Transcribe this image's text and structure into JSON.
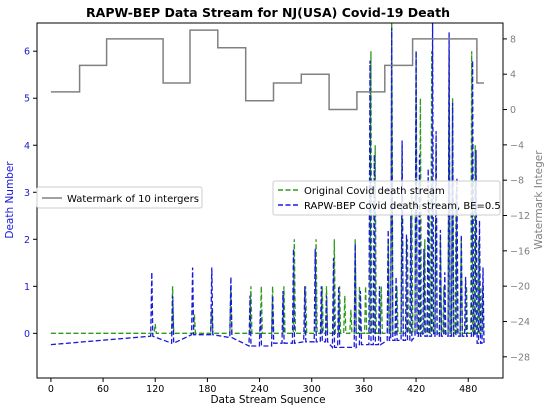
{
  "chart_data": {
    "type": "line",
    "title": "RAPW-BEP Data Stream for NJ(USA) Covid-19 Death",
    "xlabel": "Data Stream Squence",
    "ylabel_left": "Death Number",
    "ylabel_right": "Watermark Integer",
    "xlim": [
      -16,
      520
    ],
    "ylim_left": [
      -0.95,
      6.6
    ],
    "ylim_right": [
      -30.4,
      9.8
    ],
    "x_ticks": [
      0,
      60,
      120,
      180,
      240,
      300,
      360,
      420,
      480
    ],
    "y_left_ticks": [
      0,
      1,
      2,
      3,
      4,
      5,
      6
    ],
    "y_right_ticks": [
      8,
      4,
      0,
      -4,
      -8,
      -12,
      -16,
      -20,
      -24,
      -28
    ],
    "colors": {
      "watermark": "#808080",
      "original": "#2e9a1c",
      "rapw": "#1a1adb",
      "left_axis": "#1a1adb",
      "right_axis": "#808080"
    },
    "legend_left": {
      "position": "middle-left",
      "entries": [
        {
          "label": "Watermark of 10 intergers",
          "series": "watermark"
        }
      ]
    },
    "legend_right": {
      "position": "middle-right",
      "entries": [
        {
          "label": "Original Covid death stream",
          "series": "original"
        },
        {
          "label": "RAPW-BEP Covid death stream, BE=0.5",
          "series": "rapw"
        }
      ]
    },
    "series": [
      {
        "name": "Watermark of 10 intergers",
        "axis": "right",
        "style": "step",
        "segments": [
          [
            0,
            33,
            2
          ],
          [
            33,
            64,
            5
          ],
          [
            64,
            129,
            8
          ],
          [
            129,
            160,
            3
          ],
          [
            160,
            192,
            9
          ],
          [
            192,
            224,
            7
          ],
          [
            224,
            256,
            1
          ],
          [
            256,
            288,
            3
          ],
          [
            288,
            320,
            4
          ],
          [
            320,
            352,
            0
          ],
          [
            352,
            384,
            2
          ],
          [
            384,
            416,
            5
          ],
          [
            416,
            490,
            8
          ],
          [
            490,
            498,
            3
          ]
        ]
      },
      {
        "name": "Original Covid death stream",
        "axis": "left",
        "style": "spikes",
        "baseline": 0,
        "spikes": [
          [
            120,
            0.2
          ],
          [
            140,
            1.0
          ],
          [
            165,
            0.4
          ],
          [
            185,
            0.5
          ],
          [
            207,
            1.0
          ],
          [
            230,
            1.0
          ],
          [
            242,
            1.0
          ],
          [
            255,
            1.0
          ],
          [
            268,
            1.0
          ],
          [
            280,
            2.0
          ],
          [
            293,
            1.0
          ],
          [
            305,
            2.0
          ],
          [
            312,
            1.0
          ],
          [
            317,
            1.0
          ],
          [
            326,
            2.0
          ],
          [
            332,
            1.0
          ],
          [
            338,
            0.8
          ],
          [
            345,
            0.5
          ],
          [
            350,
            2.0
          ],
          [
            355,
            1.0
          ],
          [
            362,
            1.0
          ],
          [
            368,
            6.0
          ],
          [
            373,
            4.0
          ],
          [
            380,
            1.0
          ],
          [
            388,
            2.0
          ],
          [
            392,
            6.6
          ],
          [
            398,
            1.0
          ],
          [
            404,
            4.0
          ],
          [
            410,
            2.0
          ],
          [
            415,
            3.0
          ],
          [
            420,
            6.0
          ],
          [
            425,
            5.0
          ],
          [
            430,
            2.0
          ],
          [
            435,
            3.0
          ],
          [
            438,
            6.0
          ],
          [
            443,
            4.0
          ],
          [
            448,
            2.0
          ],
          [
            452,
            1.0
          ],
          [
            458,
            6.0
          ],
          [
            462,
            5.0
          ],
          [
            466,
            3.0
          ],
          [
            472,
            2.0
          ],
          [
            478,
            1.0
          ],
          [
            484,
            6.0
          ],
          [
            488,
            4.0
          ],
          [
            492,
            2.0
          ],
          [
            496,
            1.0
          ]
        ]
      },
      {
        "name": "RAPW-BEP Covid death stream, BE=0.5",
        "axis": "left",
        "style": "spikes",
        "baseline_from_watermark": true,
        "spikes": [
          [
            116,
            1.3
          ],
          [
            140,
            0.8
          ],
          [
            163,
            1.4
          ],
          [
            185,
            1.4
          ],
          [
            207,
            1.2
          ],
          [
            229,
            0.8
          ],
          [
            241,
            0.5
          ],
          [
            255,
            0.8
          ],
          [
            267,
            0.9
          ],
          [
            279,
            1.8
          ],
          [
            292,
            1.0
          ],
          [
            304,
            1.8
          ],
          [
            311,
            1.0
          ],
          [
            317,
            0.8
          ],
          [
            325,
            1.6
          ],
          [
            331,
            1.0
          ],
          [
            350,
            1.9
          ],
          [
            356,
            0.9
          ],
          [
            367,
            5.8
          ],
          [
            372,
            3.8
          ],
          [
            378,
            1.0
          ],
          [
            388,
            2.2
          ],
          [
            392,
            6.5
          ],
          [
            397,
            1.2
          ],
          [
            404,
            4.1
          ],
          [
            409,
            2.1
          ],
          [
            414,
            2.5
          ],
          [
            420,
            6.0
          ],
          [
            424,
            3.8
          ],
          [
            429,
            1.8
          ],
          [
            434,
            3.5
          ],
          [
            439,
            6.6
          ],
          [
            443,
            4.3
          ],
          [
            448,
            2.2
          ],
          [
            453,
            1.3
          ],
          [
            458,
            6.4
          ],
          [
            462,
            4.9
          ],
          [
            467,
            3.3
          ],
          [
            472,
            2.1
          ],
          [
            477,
            1.2
          ],
          [
            485,
            5.8
          ],
          [
            489,
            3.9
          ],
          [
            493,
            2.4
          ],
          [
            497,
            1.4
          ]
        ]
      }
    ]
  }
}
